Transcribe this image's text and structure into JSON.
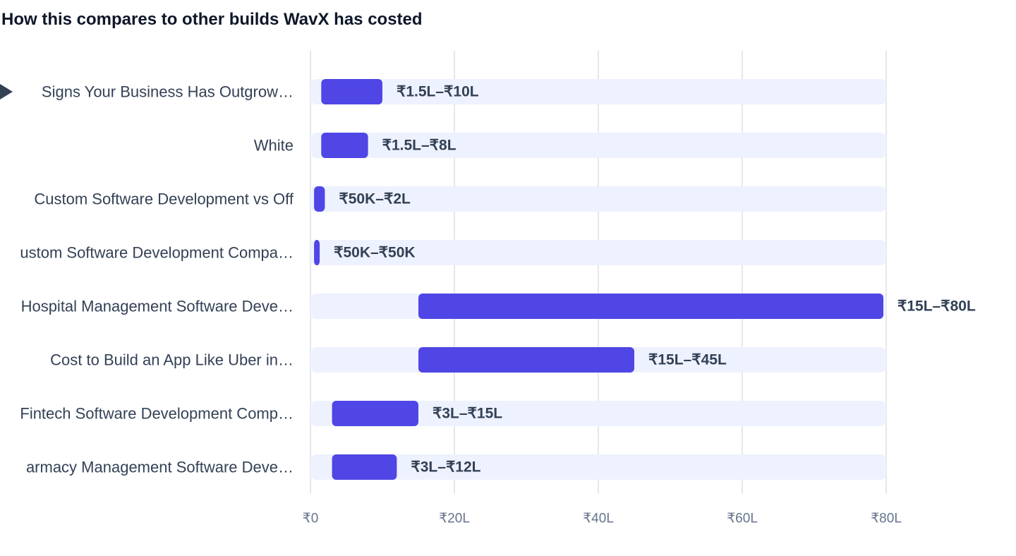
{
  "chart_data": {
    "type": "bar",
    "subtype": "range-horizontal",
    "title": "How this compares to other builds WavX has costed",
    "categories": [
      "Signs Your Business Has Outgrow…",
      "White",
      "Custom Software Development vs Off",
      "ustom Software Development Compa…",
      "Hospital Management Software Deve…",
      "Cost to Build an App Like Uber in…",
      "Fintech Software Development Comp…",
      "armacy Management Software Deve…"
    ],
    "series": [
      {
        "ranges": [
          [
            1.5,
            10
          ],
          [
            1.5,
            8
          ],
          [
            0.5,
            2
          ],
          [
            0.5,
            0.5
          ],
          [
            15,
            80
          ],
          [
            15,
            45
          ],
          [
            3,
            15
          ],
          [
            3,
            12
          ]
        ],
        "labels": [
          "₹1.5L–₹10L",
          "₹1.5L–₹8L",
          "₹50K–₹2L",
          "₹50K–₹50K",
          "₹15L–₹80L",
          "₹15L–₹45L",
          "₹3L–₹15L",
          "₹3L–₹12L"
        ]
      }
    ],
    "value_unit": "lakh",
    "xlim": [
      0,
      80
    ],
    "xticks": [
      0,
      20,
      40,
      60,
      80
    ],
    "xtick_labels": [
      "₹0",
      "₹20L",
      "₹40L",
      "₹60L",
      "₹80L"
    ],
    "grid": true,
    "highlight_marker_index": 0,
    "colors": {
      "bar": "#4f46e5",
      "track": "#eef2ff",
      "grid": "#e5e7eb",
      "label": "#334155",
      "tick": "#64748b",
      "marker": "#334155"
    }
  }
}
